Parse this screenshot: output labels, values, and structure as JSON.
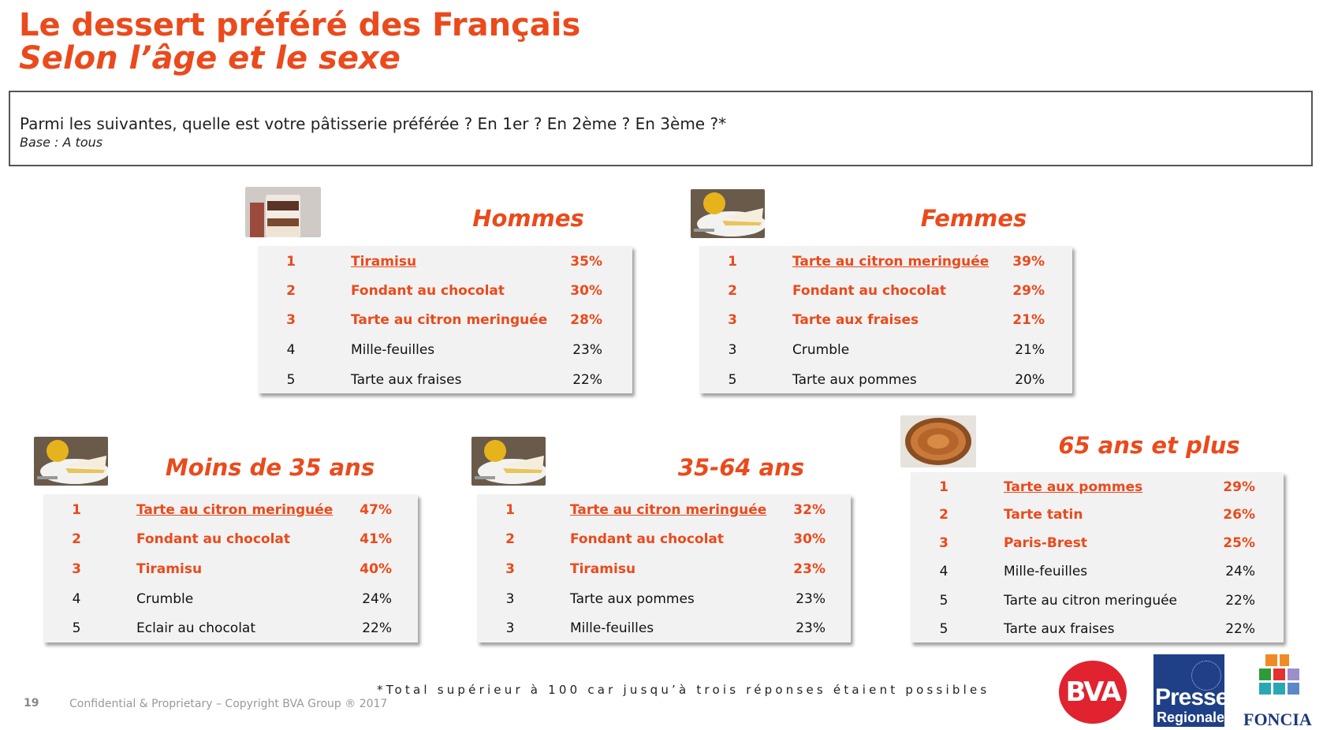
{
  "header": {
    "title": "Le dessert préféré des Français",
    "subtitle": "Selon l’âge et le sexe"
  },
  "question": {
    "text": "Parmi les suivantes, quelle est votre pâtisserie préférée ? En 1er ? En 2ème ? En 3ème ?*",
    "base": "Base : A tous"
  },
  "groups": {
    "hommes": {
      "title": "Hommes",
      "rows": [
        {
          "rank": "1",
          "name": "Tiramisu",
          "pct": "35%"
        },
        {
          "rank": "2",
          "name": "Fondant au chocolat",
          "pct": "30%"
        },
        {
          "rank": "3",
          "name": "Tarte au citron meringuée",
          "pct": "28%"
        },
        {
          "rank": "4",
          "name": "Mille-feuilles",
          "pct": "23%"
        },
        {
          "rank": "5",
          "name": "Tarte aux fraises",
          "pct": "22%"
        }
      ]
    },
    "femmes": {
      "title": "Femmes",
      "rows": [
        {
          "rank": "1",
          "name": "Tarte au citron meringuée",
          "pct": "39%"
        },
        {
          "rank": "2",
          "name": "Fondant au chocolat",
          "pct": "29%"
        },
        {
          "rank": "3",
          "name": "Tarte aux fraises",
          "pct": "21%"
        },
        {
          "rank": "3",
          "name": "Crumble",
          "pct": "21%"
        },
        {
          "rank": "5",
          "name": "Tarte aux pommes",
          "pct": "20%"
        }
      ]
    },
    "moins35": {
      "title": "Moins de 35 ans",
      "rows": [
        {
          "rank": "1",
          "name": "Tarte au citron meringuée",
          "pct": "47%"
        },
        {
          "rank": "2",
          "name": "Fondant au chocolat",
          "pct": "41%"
        },
        {
          "rank": "3",
          "name": "Tiramisu",
          "pct": "40%"
        },
        {
          "rank": "4",
          "name": "Crumble",
          "pct": "24%"
        },
        {
          "rank": "5",
          "name": "Eclair au chocolat",
          "pct": "22%"
        }
      ]
    },
    "age3564": {
      "title": "35-64 ans",
      "rows": [
        {
          "rank": "1",
          "name": "Tarte au citron meringuée",
          "pct": "32%"
        },
        {
          "rank": "2",
          "name": "Fondant au chocolat",
          "pct": "30%"
        },
        {
          "rank": "3",
          "name": "Tiramisu",
          "pct": "23%"
        },
        {
          "rank": "3",
          "name": "Tarte aux pommes",
          "pct": "23%"
        },
        {
          "rank": "3",
          "name": "Mille-feuilles",
          "pct": "23%"
        }
      ]
    },
    "plus65": {
      "title": "65 ans et plus",
      "rows": [
        {
          "rank": "1",
          "name": "Tarte aux pommes",
          "pct": "29%"
        },
        {
          "rank": "2",
          "name": "Tarte tatin",
          "pct": "26%"
        },
        {
          "rank": "3",
          "name": "Paris-Brest",
          "pct": "25%"
        },
        {
          "rank": "4",
          "name": "Mille-feuilles",
          "pct": "24%"
        },
        {
          "rank": "5",
          "name": "Tarte au citron meringuée",
          "pct": "22%"
        },
        {
          "rank": "5",
          "name": "Tarte aux fraises",
          "pct": "22%"
        }
      ]
    }
  },
  "footer": {
    "footnote": "*Total supérieur à 100 car jusqu’à trois réponses étaient possibles",
    "page": "19",
    "copyright": "Confidential & Proprietary – Copyright BVA Group ®  2017"
  },
  "logos": {
    "bva": "BVA",
    "presse_line1": "Presse",
    "presse_line2": "Regionale",
    "foncia": "FONCIA"
  },
  "colors": {
    "accent": "#ea4a1c",
    "table_bg": "#f2f2f2",
    "bva_red": "#e0232f",
    "presse_blue": "#1f3f86"
  }
}
